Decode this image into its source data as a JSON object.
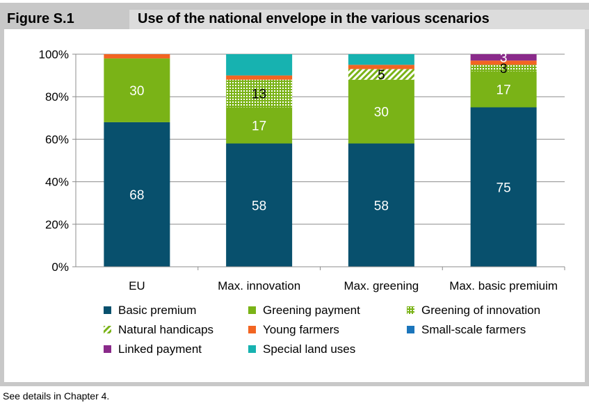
{
  "figure_label": "Figure S.1",
  "figure_title": "Use of the national envelope in the various scenarios",
  "note": "See details in Chapter 4.",
  "colors": {
    "Basic premium": "#08506d",
    "Greening payment": "#7ab317",
    "Greening of innovation": "#7ab317",
    "Natural handicaps": "#7ab317",
    "Young farmers": "#f26522",
    "Small-scale farmers": "#1b75bb",
    "Linked payment": "#8a2a8a",
    "Special land uses": "#17b2b0"
  },
  "chart_data": {
    "type": "bar",
    "stacked": true,
    "categories": [
      "EU",
      "Max. innovation",
      "Max. greening",
      "Max. basic premiuim"
    ],
    "ylim": [
      0,
      100
    ],
    "yticks": [
      "0%",
      "20%",
      "40%",
      "60%",
      "80%",
      "100%"
    ],
    "series": [
      {
        "name": "Basic premium",
        "values": [
          68,
          58,
          58,
          75
        ],
        "labels": [
          "68",
          "58",
          "58",
          "75"
        ]
      },
      {
        "name": "Greening payment",
        "values": [
          30,
          17,
          30,
          17
        ],
        "labels": [
          "30",
          "17",
          "30",
          "17"
        ]
      },
      {
        "name": "Greening of innovation",
        "values": [
          0,
          13,
          0,
          3
        ],
        "labels": [
          "",
          "13",
          "",
          "3"
        ]
      },
      {
        "name": "Natural handicaps",
        "values": [
          0,
          0,
          5,
          0
        ],
        "labels": [
          "",
          "",
          "5",
          ""
        ]
      },
      {
        "name": "Young farmers",
        "values": [
          2,
          2,
          2,
          2
        ],
        "labels": [
          "",
          "",
          "",
          ""
        ]
      },
      {
        "name": "Small-scale farmers",
        "values": [
          0,
          0,
          0,
          0
        ],
        "labels": [
          "",
          "",
          "",
          ""
        ]
      },
      {
        "name": "Linked payment",
        "values": [
          0,
          0,
          0,
          3
        ],
        "labels": [
          "",
          "",
          "",
          "3"
        ]
      },
      {
        "name": "Special land uses",
        "values": [
          0,
          10,
          5,
          0
        ],
        "labels": [
          "",
          "",
          "",
          ""
        ]
      }
    ],
    "legend_order": [
      "Basic premium",
      "Greening payment",
      "Greening of innovation",
      "Natural handicaps",
      "Young farmers",
      "Small-scale farmers",
      "Linked payment",
      "Special land uses"
    ],
    "grid": true,
    "legend_position": "bottom"
  }
}
